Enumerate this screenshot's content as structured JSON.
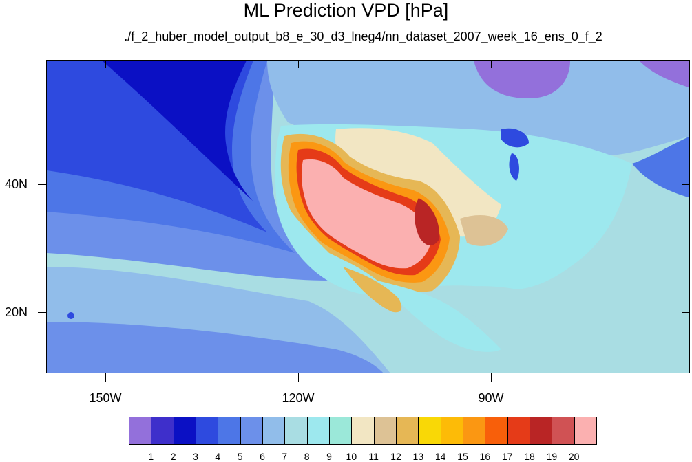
{
  "title": "ML Prediction VPD [hPa]",
  "subtitle": "./f_2_huber_model_output_b8_e_30_d3_lneg4/nn_dataset_2007_week_16_ens_0_f_2",
  "lon_labels": [
    "150W",
    "120W",
    "90W"
  ],
  "lat_labels": [
    "40N",
    "20N"
  ],
  "colorbar": {
    "labels": [
      "1",
      "2",
      "3",
      "4",
      "5",
      "6",
      "7",
      "8",
      "9",
      "10",
      "11",
      "12",
      "13",
      "14",
      "15",
      "16",
      "17",
      "18",
      "19",
      "20"
    ],
    "colors": [
      "#9370db",
      "#3e2fcb",
      "#0b10c4",
      "#2e4adf",
      "#4d76e7",
      "#6c90ea",
      "#91bdea",
      "#a9dde3",
      "#9de8ee",
      "#9be8d9",
      "#f2e6c3",
      "#ddc295",
      "#e6b755",
      "#f9d806",
      "#fdbb07",
      "#fb9712",
      "#f85f0a",
      "#e53b18",
      "#b92525",
      "#d05254",
      "#fbb0b0"
    ]
  }
}
